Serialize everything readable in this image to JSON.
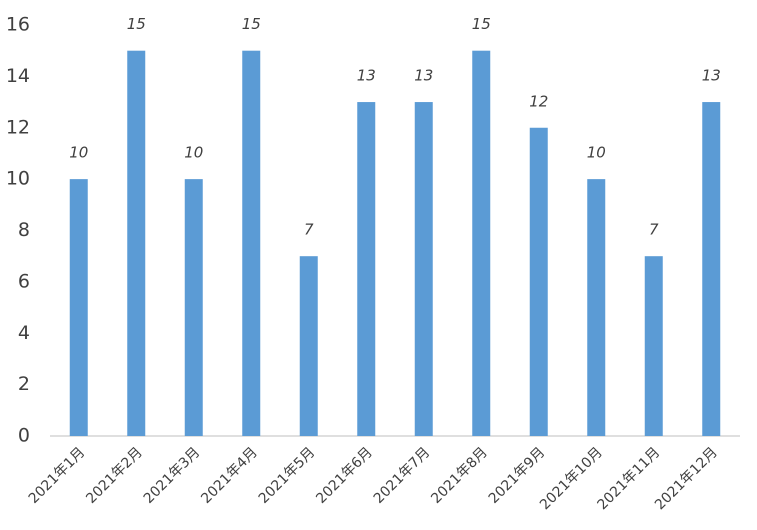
{
  "chart_data": {
    "type": "bar",
    "categories": [
      "2021年1月",
      "2021年2月",
      "2021年3月",
      "2021年4月",
      "2021年5月",
      "2021年6月",
      "2021年7月",
      "2021年8月",
      "2021年9月",
      "2021年10月",
      "2021年11月",
      "2021年12月"
    ],
    "values": [
      10,
      15,
      10,
      15,
      7,
      13,
      13,
      15,
      12,
      10,
      7,
      13
    ],
    "color": "#5b9bd5",
    "ylim": [
      0,
      16
    ],
    "yticks": [
      0,
      2,
      4,
      6,
      8,
      10,
      12,
      14,
      16
    ],
    "grid": false
  }
}
